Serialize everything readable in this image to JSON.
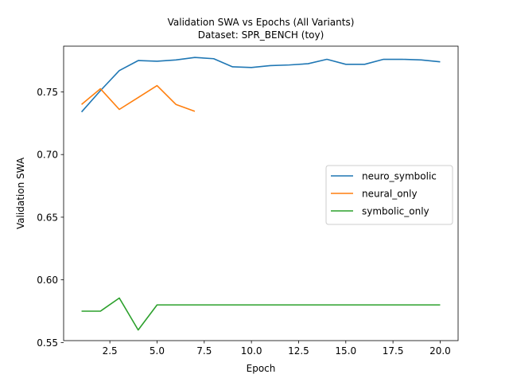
{
  "chart_data": {
    "type": "line",
    "title": "Validation SWA vs Epochs (All Variants)",
    "subtitle": "Dataset: SPR_BENCH (toy)",
    "xlabel": "Epoch",
    "ylabel": "Validation SWA",
    "xlim": [
      0.05,
      20.95
    ],
    "ylim": [
      0.5515,
      0.7865
    ],
    "xticks": [
      2.5,
      5.0,
      7.5,
      10.0,
      12.5,
      15.0,
      17.5,
      20.0
    ],
    "xtick_labels": [
      "2.5",
      "5.0",
      "7.5",
      "10.0",
      "12.5",
      "15.0",
      "17.5",
      "20.0"
    ],
    "yticks": [
      0.55,
      0.6,
      0.65,
      0.7,
      0.75
    ],
    "ytick_labels": [
      "0.55",
      "0.60",
      "0.65",
      "0.70",
      "0.75"
    ],
    "grid": false,
    "legend_position": "center-right",
    "series": [
      {
        "name": "neuro_symbolic",
        "color": "#1f77b4",
        "x": [
          1,
          2,
          3,
          4,
          5,
          6,
          7,
          8,
          9,
          10,
          11,
          12,
          13,
          14,
          15,
          16,
          17,
          18,
          19,
          20
        ],
        "y": [
          0.734,
          0.751,
          0.767,
          0.775,
          0.7745,
          0.7755,
          0.7775,
          0.7765,
          0.77,
          0.7695,
          0.771,
          0.7715,
          0.7725,
          0.776,
          0.772,
          0.772,
          0.776,
          0.776,
          0.7755,
          0.774
        ]
      },
      {
        "name": "neural_only",
        "color": "#ff7f0e",
        "x": [
          1,
          2,
          3,
          4,
          5,
          6,
          7
        ],
        "y": [
          0.74,
          0.7525,
          0.736,
          0.7455,
          0.755,
          0.74,
          0.7345
        ]
      },
      {
        "name": "symbolic_only",
        "color": "#2ca02c",
        "x": [
          1,
          2,
          3,
          4,
          5,
          6,
          7,
          8,
          9,
          10,
          11,
          12,
          13,
          14,
          15,
          16,
          17,
          18,
          19,
          20
        ],
        "y": [
          0.575,
          0.575,
          0.5855,
          0.56,
          0.58,
          0.58,
          0.58,
          0.58,
          0.58,
          0.58,
          0.58,
          0.58,
          0.58,
          0.58,
          0.58,
          0.58,
          0.58,
          0.58,
          0.58,
          0.58
        ]
      }
    ]
  }
}
